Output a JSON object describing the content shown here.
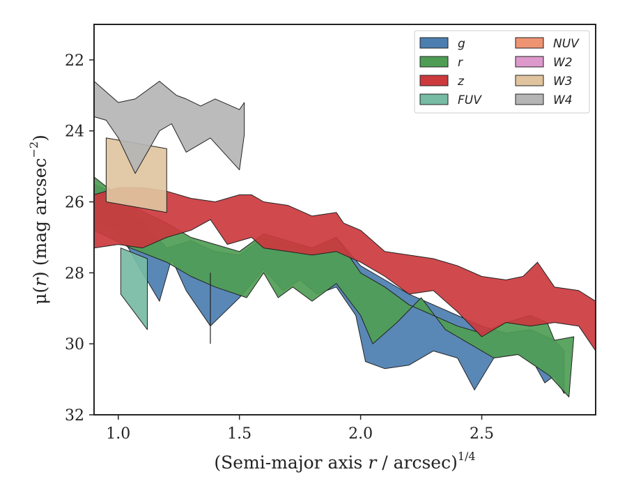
{
  "chart_data": {
    "type": "area",
    "xlabel": "(Semi-major axis r / arcsec)",
    "xlabel_italic_part": "r",
    "xlabel_before": "(Semi-major axis ",
    "xlabel_after": " / arcsec)",
    "xlabel_exponent": "1/4",
    "ylabel_before": "μ(",
    "ylabel_italic_part": "r",
    "ylabel_after": ") (mag arcsec",
    "ylabel_exponent": "−2",
    "ylabel_close": ")",
    "xlim": [
      0.9,
      2.97
    ],
    "ylim": [
      32,
      21
    ],
    "y_inverted": true,
    "grid": false,
    "legend_placement": "top-right",
    "xticks": [
      1.0,
      1.5,
      2.0,
      2.5
    ],
    "xtick_labels": [
      "1.0",
      "1.5",
      "2.0",
      "2.5"
    ],
    "yticks": [
      22,
      24,
      26,
      28,
      30,
      32
    ],
    "ytick_labels": [
      "22",
      "24",
      "26",
      "28",
      "30",
      "32"
    ],
    "legend": [
      {
        "name": "g",
        "color": "#4c7eb0"
      },
      {
        "name": "r",
        "color": "#4f9d55"
      },
      {
        "name": "z",
        "color": "#cc3a3e"
      },
      {
        "name": "FUV",
        "color": "#77bba5"
      },
      {
        "name": "NUV",
        "color": "#ee9473"
      },
      {
        "name": "W2",
        "color": "#dd99cc"
      },
      {
        "name": "W3",
        "color": "#e0c49f"
      },
      {
        "name": "W4",
        "color": "#b5b5b5"
      }
    ],
    "series": [
      {
        "name": "g",
        "color": "#4c7eb0",
        "upper": [
          [
            0.9,
            25.5
          ],
          [
            1.02,
            25.9
          ],
          [
            1.12,
            26.7
          ],
          [
            1.2,
            27.3
          ],
          [
            1.3,
            27.1
          ],
          [
            1.4,
            27.4
          ],
          [
            1.5,
            27.5
          ],
          [
            1.6,
            27.0
          ],
          [
            1.7,
            27.2
          ],
          [
            1.8,
            27.3
          ],
          [
            1.9,
            27.0
          ],
          [
            2.0,
            27.8
          ],
          [
            2.1,
            28.2
          ],
          [
            2.2,
            28.6
          ],
          [
            2.3,
            28.9
          ],
          [
            2.4,
            29.2
          ],
          [
            2.5,
            29.5
          ],
          [
            2.6,
            29.7
          ],
          [
            2.7,
            29.6
          ],
          [
            2.8,
            29.9
          ],
          [
            2.84,
            30.2
          ]
        ],
        "lower": [
          [
            0.9,
            26.5
          ],
          [
            1.0,
            26.8
          ],
          [
            1.1,
            28.0
          ],
          [
            1.17,
            28.8
          ],
          [
            1.22,
            27.6
          ],
          [
            1.28,
            28.5
          ],
          [
            1.38,
            29.5
          ],
          [
            1.5,
            28.7
          ],
          [
            1.6,
            27.9
          ],
          [
            1.68,
            28.5
          ],
          [
            1.75,
            28.2
          ],
          [
            1.82,
            28.6
          ],
          [
            1.9,
            28.4
          ],
          [
            1.98,
            29.2
          ],
          [
            2.02,
            30.5
          ],
          [
            2.1,
            30.7
          ],
          [
            2.2,
            30.6
          ],
          [
            2.3,
            30.2
          ],
          [
            2.4,
            30.4
          ],
          [
            2.47,
            31.3
          ],
          [
            2.55,
            30.4
          ],
          [
            2.65,
            30.3
          ],
          [
            2.72,
            30.6
          ],
          [
            2.76,
            31.1
          ],
          [
            2.8,
            30.9
          ],
          [
            2.84,
            31.4
          ]
        ]
      },
      {
        "name": "r",
        "color": "#4f9d55",
        "upper": [
          [
            0.9,
            25.3
          ],
          [
            1.05,
            26.1
          ],
          [
            1.2,
            26.6
          ],
          [
            1.3,
            27.0
          ],
          [
            1.4,
            27.2
          ],
          [
            1.5,
            27.4
          ],
          [
            1.6,
            26.9
          ],
          [
            1.7,
            27.1
          ],
          [
            1.8,
            27.3
          ],
          [
            1.9,
            27.0
          ],
          [
            2.0,
            28.0
          ],
          [
            2.1,
            28.4
          ],
          [
            2.2,
            28.9
          ],
          [
            2.3,
            29.2
          ],
          [
            2.4,
            29.5
          ],
          [
            2.5,
            29.7
          ],
          [
            2.6,
            29.4
          ],
          [
            2.7,
            29.2
          ],
          [
            2.77,
            29.4
          ],
          [
            2.8,
            29.9
          ],
          [
            2.88,
            29.8
          ]
        ],
        "lower": [
          [
            0.9,
            26.8
          ],
          [
            1.05,
            27.3
          ],
          [
            1.2,
            27.7
          ],
          [
            1.3,
            28.1
          ],
          [
            1.4,
            28.4
          ],
          [
            1.53,
            28.7
          ],
          [
            1.6,
            28.0
          ],
          [
            1.66,
            28.7
          ],
          [
            1.72,
            28.4
          ],
          [
            1.8,
            28.8
          ],
          [
            1.9,
            28.3
          ],
          [
            2.0,
            29.2
          ],
          [
            2.05,
            30.0
          ],
          [
            2.15,
            29.4
          ],
          [
            2.25,
            28.7
          ],
          [
            2.35,
            29.6
          ],
          [
            2.45,
            30.0
          ],
          [
            2.55,
            30.4
          ],
          [
            2.65,
            30.3
          ],
          [
            2.78,
            30.9
          ],
          [
            2.86,
            31.5
          ]
        ]
      },
      {
        "name": "z",
        "color": "#cc3a3e",
        "upper": [
          [
            0.9,
            25.8
          ],
          [
            1.0,
            25.6
          ],
          [
            1.1,
            25.6
          ],
          [
            1.2,
            25.7
          ],
          [
            1.3,
            25.9
          ],
          [
            1.4,
            26.0
          ],
          [
            1.5,
            25.8
          ],
          [
            1.52,
            25.8
          ],
          [
            1.55,
            25.8
          ],
          [
            1.6,
            26.0
          ],
          [
            1.7,
            26.1
          ],
          [
            1.8,
            26.4
          ],
          [
            1.9,
            26.3
          ],
          [
            1.93,
            26.6
          ],
          [
            2.0,
            26.8
          ],
          [
            2.1,
            27.4
          ],
          [
            2.2,
            27.5
          ],
          [
            2.3,
            27.6
          ],
          [
            2.4,
            27.8
          ],
          [
            2.5,
            28.1
          ],
          [
            2.6,
            28.2
          ],
          [
            2.67,
            28.1
          ],
          [
            2.73,
            27.7
          ],
          [
            2.8,
            28.4
          ],
          [
            2.9,
            28.5
          ],
          [
            2.97,
            28.8
          ]
        ],
        "lower": [
          [
            0.9,
            27.3
          ],
          [
            1.0,
            27.2
          ],
          [
            1.1,
            27.3
          ],
          [
            1.2,
            27.0
          ],
          [
            1.3,
            26.8
          ],
          [
            1.38,
            26.5
          ],
          [
            1.45,
            27.2
          ],
          [
            1.55,
            27.0
          ],
          [
            1.6,
            27.3
          ],
          [
            1.7,
            27.4
          ],
          [
            1.8,
            27.5
          ],
          [
            1.9,
            27.4
          ],
          [
            2.0,
            27.7
          ],
          [
            2.1,
            28.1
          ],
          [
            2.2,
            28.6
          ],
          [
            2.3,
            28.5
          ],
          [
            2.4,
            29.1
          ],
          [
            2.5,
            29.8
          ],
          [
            2.6,
            29.4
          ],
          [
            2.7,
            29.5
          ],
          [
            2.8,
            29.4
          ],
          [
            2.9,
            29.5
          ],
          [
            2.97,
            30.2
          ]
        ]
      },
      {
        "name": "FUV",
        "color": "#77bba5",
        "upper": [
          [
            1.01,
            27.3
          ],
          [
            1.12,
            27.6
          ]
        ],
        "lower": [
          [
            1.01,
            28.6
          ],
          [
            1.12,
            29.6
          ]
        ]
      },
      {
        "name": "W3",
        "color": "#e0c49f",
        "upper": [
          [
            0.95,
            24.2
          ],
          [
            1.2,
            24.5
          ]
        ],
        "lower": [
          [
            0.95,
            26.0
          ],
          [
            1.2,
            26.3
          ]
        ]
      },
      {
        "name": "W4",
        "color": "#b5b5b5",
        "upper": [
          [
            0.9,
            22.6
          ],
          [
            1.0,
            23.2
          ],
          [
            1.07,
            23.1
          ],
          [
            1.17,
            22.6
          ],
          [
            1.24,
            23.0
          ],
          [
            1.28,
            23.1
          ],
          [
            1.34,
            23.3
          ],
          [
            1.4,
            23.1
          ],
          [
            1.5,
            23.4
          ],
          [
            1.52,
            23.2
          ]
        ],
        "lower": [
          [
            0.9,
            23.6
          ],
          [
            0.95,
            23.7
          ],
          [
            1.0,
            24.2
          ],
          [
            1.07,
            25.2
          ],
          [
            1.17,
            24.0
          ],
          [
            1.22,
            23.8
          ],
          [
            1.28,
            24.6
          ],
          [
            1.38,
            24.2
          ],
          [
            1.5,
            25.1
          ],
          [
            1.52,
            24.1
          ]
        ]
      }
    ],
    "annotations": [
      {
        "type": "vertical-line",
        "x": 1.38,
        "y_from": 28.0,
        "y_to": 30.0
      }
    ]
  }
}
